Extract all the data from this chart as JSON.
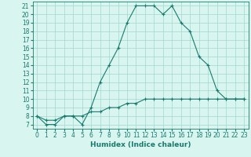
{
  "line1_x": [
    0,
    1,
    2,
    3,
    4,
    5,
    6,
    7,
    8,
    9,
    10,
    11,
    12,
    13,
    14,
    15,
    16,
    17,
    18,
    19,
    20,
    21,
    22,
    23
  ],
  "line1_y": [
    8,
    7,
    7,
    8,
    8,
    7,
    9,
    12,
    14,
    16,
    19,
    21,
    21,
    21,
    20,
    21,
    19,
    18,
    15,
    14,
    11,
    10,
    10,
    10
  ],
  "line2_x": [
    0,
    1,
    2,
    3,
    4,
    5,
    6,
    7,
    8,
    9,
    10,
    11,
    12,
    13,
    14,
    15,
    16,
    17,
    18,
    19,
    20,
    21,
    22,
    23
  ],
  "line2_y": [
    8,
    7.5,
    7.5,
    8,
    8,
    8,
    8.5,
    8.5,
    9,
    9,
    9.5,
    9.5,
    10,
    10,
    10,
    10,
    10,
    10,
    10,
    10,
    10,
    10,
    10,
    10
  ],
  "color": "#1a7a6e",
  "bg_color": "#d8f5f0",
  "grid_color": "#a0d8d0",
  "xlabel": "Humidex (Indice chaleur)",
  "xlim": [
    -0.5,
    23.5
  ],
  "ylim": [
    6.5,
    21.5
  ],
  "yticks": [
    7,
    8,
    9,
    10,
    11,
    12,
    13,
    14,
    15,
    16,
    17,
    18,
    19,
    20,
    21
  ],
  "xticks": [
    0,
    1,
    2,
    3,
    4,
    5,
    6,
    7,
    8,
    9,
    10,
    11,
    12,
    13,
    14,
    15,
    16,
    17,
    18,
    19,
    20,
    21,
    22,
    23
  ],
  "label_fontsize": 6.5,
  "tick_fontsize": 5.5
}
